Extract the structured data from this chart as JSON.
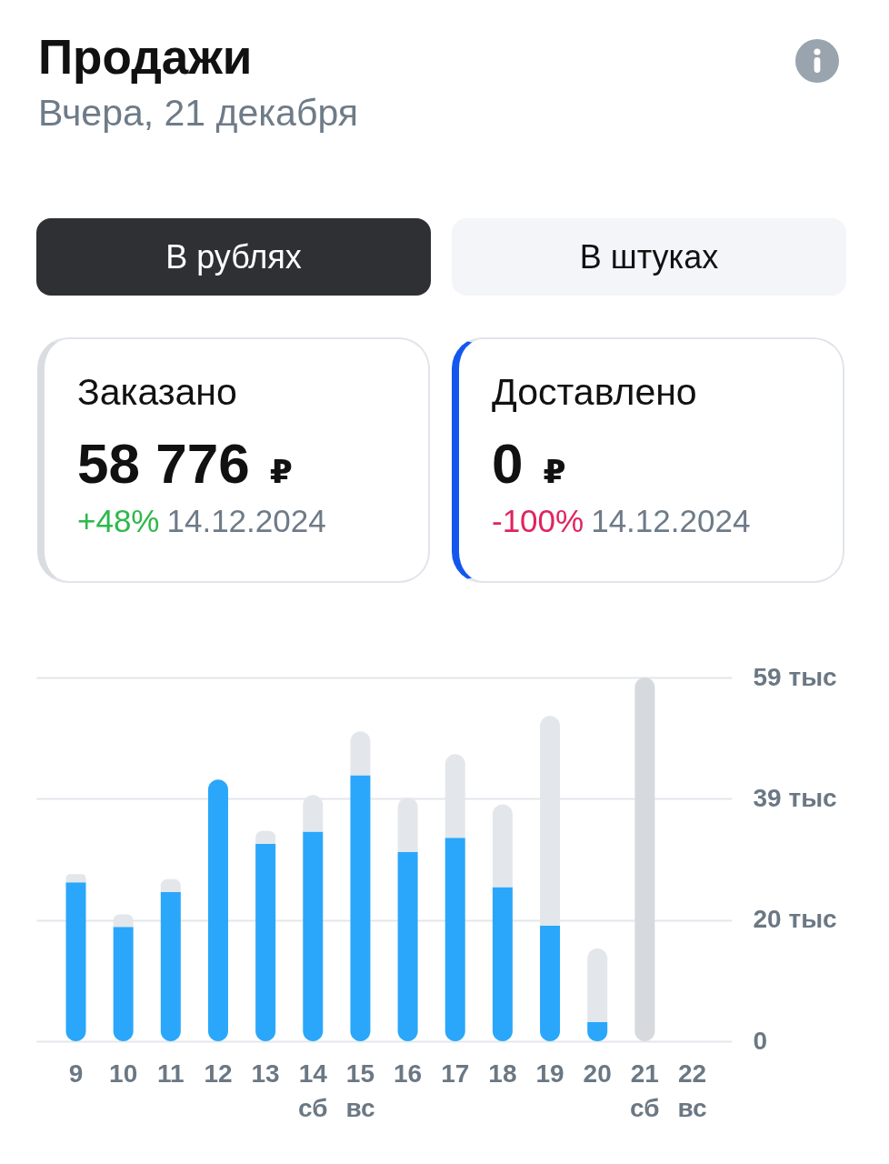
{
  "chart_data": {
    "type": "bar",
    "title": "Продажи",
    "subtitle": "Вчера, 21 декабря",
    "annotations": [
      "В рублях",
      "В штуках",
      "Заказано",
      "58 776 ₽",
      "+48%",
      "14.12.2024",
      "Доставлено",
      "0 ₽",
      "-100%",
      "14.12.2024"
    ],
    "categories": [
      "9",
      "10",
      "11",
      "12",
      "13",
      "14\nсб",
      "15\nвс",
      "16",
      "17",
      "18",
      "19",
      "20",
      "21\nсб",
      "22\nвс"
    ],
    "stacked": true,
    "series": [
      {
        "color": "#2aa7fa",
        "values": [
          25.7,
          18.5,
          24.1,
          42.3,
          31.9,
          33.9,
          43.0,
          30.6,
          32.9,
          24.9,
          18.7,
          3.1,
          null,
          null
        ]
      },
      {
        "colors": [
          "#e3e7eb",
          "#e3e7eb",
          "#e3e7eb",
          null,
          "#e3e7eb",
          "#e3e7eb",
          "#e3e7eb",
          "#e3e7eb",
          "#e3e7eb",
          "#e3e7eb",
          "#e3e7eb",
          "#e3e7eb",
          "#d6dade",
          null
        ],
        "values": [
          1.3,
          2.0,
          2.1,
          null,
          2.1,
          5.9,
          7.1,
          8.8,
          13.5,
          13.4,
          33.9,
          11.9,
          58.8,
          null
        ]
      }
    ],
    "ylim": [
      0,
      58.8
    ],
    "yticks": [
      0,
      {
        "value": 19.6,
        "label": "20 тыс"
      },
      {
        "value": 39.2,
        "label": "39 тыс"
      },
      {
        "value": 58.8,
        "label": "59 тыс"
      }
    ],
    "grid": "y"
  }
}
